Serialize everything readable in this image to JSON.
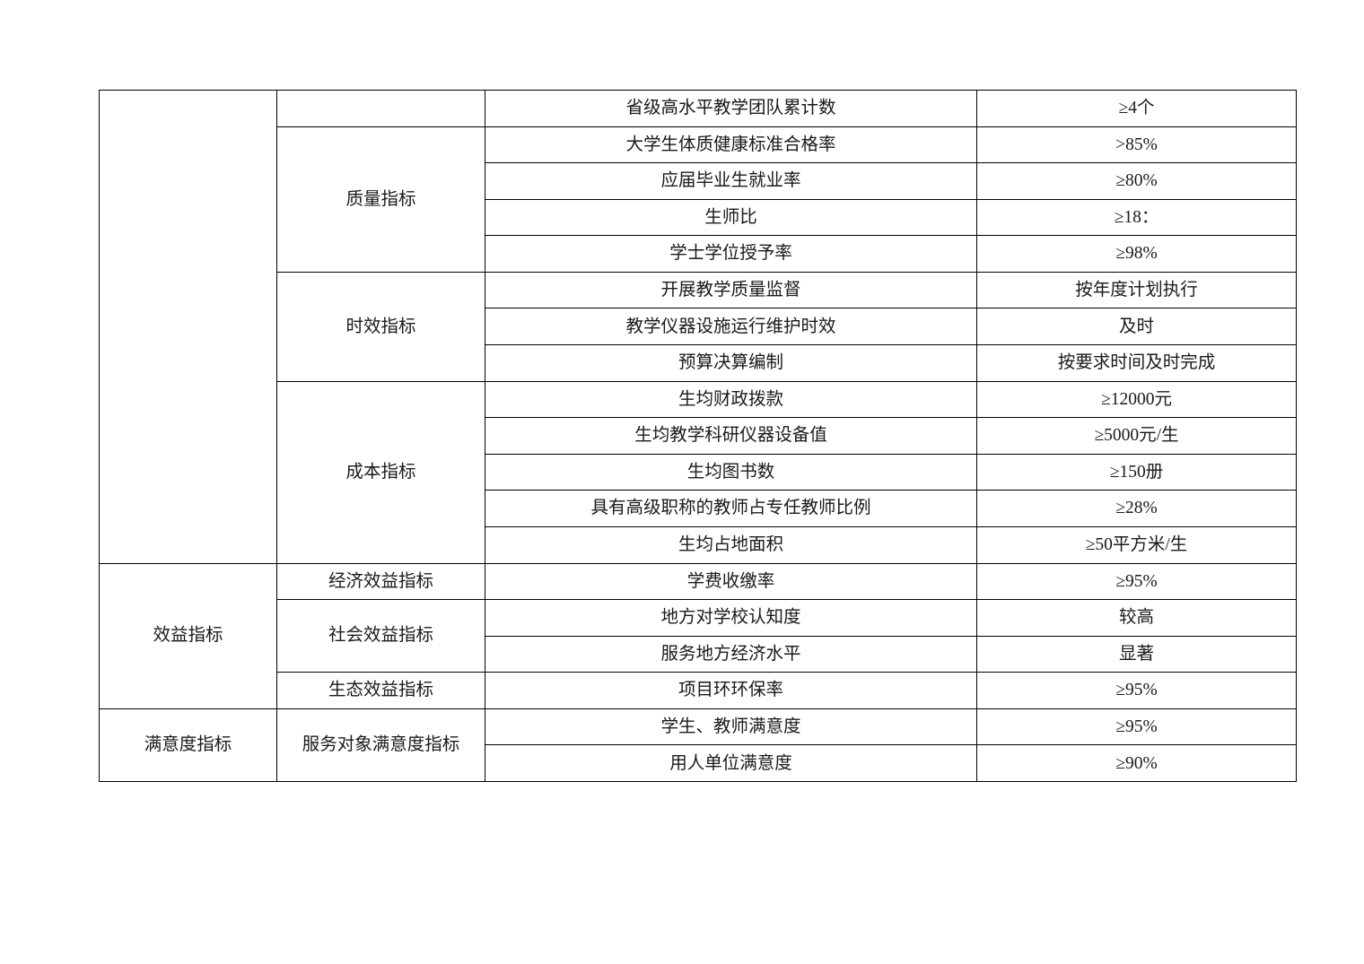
{
  "table": {
    "col1_groups": [
      {
        "label": "",
        "rowspan": 13
      },
      {
        "label": "效益指标",
        "rowspan": 4
      },
      {
        "label": "满意度指标",
        "rowspan": 2
      }
    ],
    "col2_groups": [
      {
        "label": "",
        "rowspan": 1
      },
      {
        "label": "质量指标",
        "rowspan": 4
      },
      {
        "label": "时效指标",
        "rowspan": 3
      },
      {
        "label": "成本指标",
        "rowspan": 5
      },
      {
        "label": "经济效益指标",
        "rowspan": 1
      },
      {
        "label": "社会效益指标",
        "rowspan": 2
      },
      {
        "label": "生态效益指标",
        "rowspan": 1
      },
      {
        "label": "服务对象满意度指标",
        "rowspan": 2
      }
    ],
    "rows": [
      {
        "indicator": "省级高水平教学团队累计数",
        "target": "≥4个"
      },
      {
        "indicator": "大学生体质健康标准合格率",
        "target": ">85%"
      },
      {
        "indicator": "应届毕业生就业率",
        "target": "≥80%"
      },
      {
        "indicator": "生师比",
        "target": "≥18："
      },
      {
        "indicator": "学士学位授予率",
        "target": "≥98%"
      },
      {
        "indicator": "开展教学质量监督",
        "target": "按年度计划执行"
      },
      {
        "indicator": "教学仪器设施运行维护时效",
        "target": "及时"
      },
      {
        "indicator": "预算决算编制",
        "target": "按要求时间及时完成"
      },
      {
        "indicator": "生均财政拨款",
        "target": "≥12000元"
      },
      {
        "indicator": "生均教学科研仪器设备值",
        "target": "≥5000元/生"
      },
      {
        "indicator": "生均图书数",
        "target": "≥150册"
      },
      {
        "indicator": "具有高级职称的教师占专任教师比例",
        "target": "≥28%"
      },
      {
        "indicator": "生均占地面积",
        "target": "≥50平方米/生"
      },
      {
        "indicator": "学费收缴率",
        "target": "≥95%"
      },
      {
        "indicator": "地方对学校认知度",
        "target": "较高"
      },
      {
        "indicator": "服务地方经济水平",
        "target": "显著"
      },
      {
        "indicator": "项目环环保率",
        "target": "≥95%"
      },
      {
        "indicator": "学生、教师满意度",
        "target": "≥95%"
      },
      {
        "indicator": "用人单位满意度",
        "target": "≥90%"
      }
    ]
  }
}
